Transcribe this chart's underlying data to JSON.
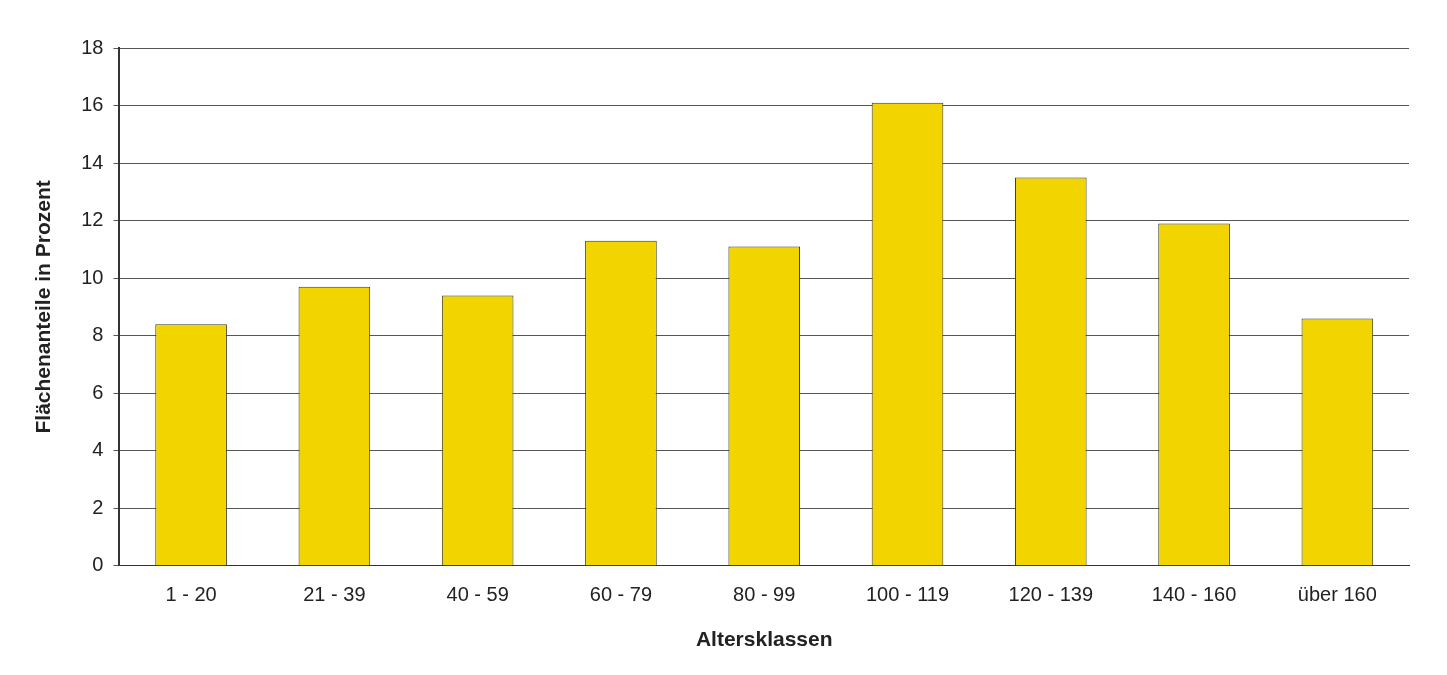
{
  "chart_data": {
    "type": "bar",
    "xlabel": "Altersklassen",
    "ylabel": "Flächenanteile in Prozent",
    "categories": [
      "1 - 20",
      "21 - 39",
      "40 - 59",
      "60 - 79",
      "80 - 99",
      "100 - 119",
      "120 - 139",
      "140 - 160",
      "über 160"
    ],
    "values": [
      8.4,
      9.7,
      9.4,
      11.3,
      11.1,
      16.1,
      13.5,
      11.9,
      8.6
    ],
    "color": "#f2d400",
    "ylim": [
      0,
      18
    ],
    "yticks": [
      0,
      2,
      4,
      6,
      8,
      10,
      12,
      14,
      16,
      18
    ],
    "grid": "y",
    "legend": false
  }
}
